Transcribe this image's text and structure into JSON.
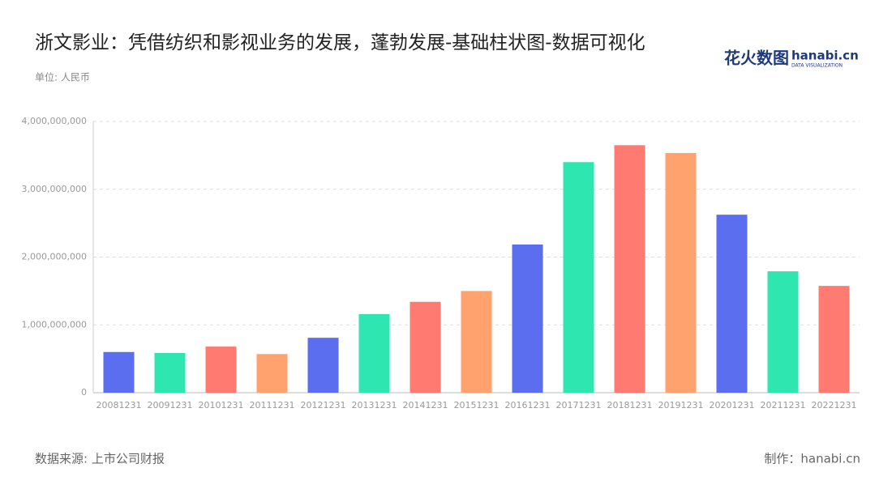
{
  "chart_data": {
    "type": "bar",
    "title": "浙文影业：凭借纺织和影视业务的发展，蓬勃发展-基础柱状图-数据可视化",
    "subtitle": "单位: 人民币",
    "source": "数据来源: 上市公司财报",
    "credit": "制作：hanabi.cn",
    "logo": {
      "mark": "花火数图",
      "site": "hanabi.cn",
      "tagline": "DATA VISUALIZATION"
    },
    "categories": [
      "20081231",
      "20091231",
      "20101231",
      "20111231",
      "20121231",
      "20131231",
      "20141231",
      "20151231",
      "20161231",
      "20171231",
      "20181231",
      "20191231",
      "20201231",
      "20211231",
      "20221231"
    ],
    "values": [
      600000000,
      585000000,
      680000000,
      570000000,
      810000000,
      1160000000,
      1340000000,
      1500000000,
      2185000000,
      3400000000,
      3650000000,
      3535000000,
      2625000000,
      1790000000,
      1575000000
    ],
    "colors": [
      "#5b6ef0",
      "#2de6b0",
      "#ff7a70",
      "#ffa26d",
      "#5b6ef0",
      "#2de6b0",
      "#ff7a70",
      "#ffa26d",
      "#5b6ef0",
      "#2de6b0",
      "#ff7a70",
      "#ffa26d",
      "#5b6ef0",
      "#2de6b0",
      "#ff7a70"
    ],
    "ylim": [
      0,
      4000000000
    ],
    "yticks": [
      0,
      {
        "value": 1000000000,
        "label": "1,000,000,000"
      },
      {
        "value": 2000000000,
        "label": "2,000,000,000"
      },
      {
        "value": 3000000000,
        "label": "3,000,000,000"
      },
      {
        "value": 4000000000,
        "label": "4,000,000,000"
      }
    ],
    "grid": true
  }
}
